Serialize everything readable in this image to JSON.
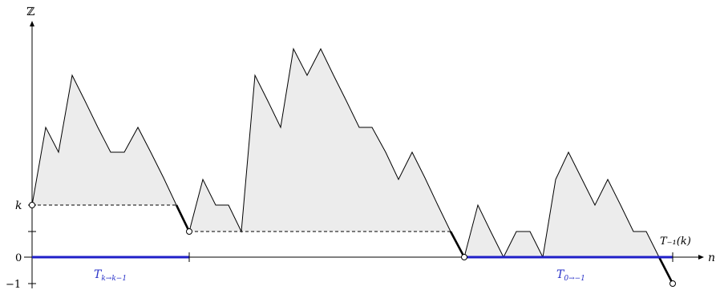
{
  "axes": {
    "y_label": "ℤ",
    "x_label": "n",
    "tick_k": "k",
    "tick_zero": "0",
    "tick_minus_one": "−1",
    "hitting_time_label": "T₋₁(k)"
  },
  "segments": {
    "first_label": "T",
    "first_sub": "k→k−1",
    "second_label": "T",
    "second_sub": "0→−1"
  },
  "colors": {
    "fill": "#ececec",
    "segment": "#1f1fc8"
  }
}
